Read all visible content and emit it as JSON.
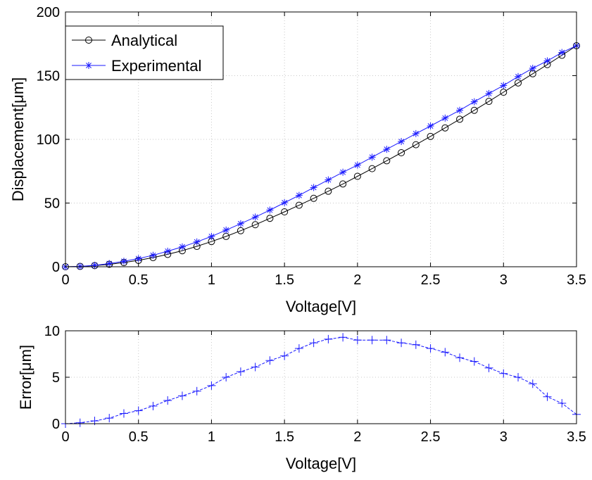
{
  "chart_data": [
    {
      "type": "line",
      "xlabel": "Voltage[V]",
      "ylabel": "Displacement[μm]",
      "xlim": [
        0,
        3.5
      ],
      "ylim": [
        0,
        200
      ],
      "xticks": [
        "0",
        "0.5",
        "1",
        "1.5",
        "2",
        "2.5",
        "3",
        "3.5"
      ],
      "yticks": [
        "0",
        "50",
        "100",
        "150",
        "200"
      ],
      "grid": true,
      "legend_position": "top-left",
      "x": [
        0,
        0.1,
        0.2,
        0.3,
        0.4,
        0.5,
        0.6,
        0.7,
        0.8,
        0.9,
        1.0,
        1.1,
        1.2,
        1.3,
        1.4,
        1.5,
        1.6,
        1.7,
        1.8,
        1.9,
        2.0,
        2.1,
        2.2,
        2.3,
        2.4,
        2.5,
        2.6,
        2.7,
        2.8,
        2.9,
        3.0,
        3.1,
        3.2,
        3.3,
        3.4,
        3.5
      ],
      "series": [
        {
          "name": "Analytical",
          "color": "#000000",
          "marker": "circle",
          "values": [
            0,
            0.3,
            0.9,
            1.9,
            3.3,
            5.0,
            7.2,
            9.7,
            12.6,
            16.0,
            19.8,
            23.8,
            28.3,
            33.0,
            38.0,
            43.1,
            48.3,
            53.7,
            59.3,
            65.0,
            71.0,
            77.0,
            83.2,
            89.5,
            95.8,
            102.3,
            109.0,
            115.8,
            122.8,
            129.8,
            137.0,
            144.3,
            151.5,
            158.7,
            166.0,
            173.5
          ]
        },
        {
          "name": "Experimental",
          "color": "#1a1aff",
          "marker": "asterisk",
          "values": [
            0,
            0.3,
            1.1,
            2.5,
            4.3,
            6.4,
            9.0,
            12.2,
            15.6,
            19.5,
            23.8,
            28.8,
            33.8,
            39.0,
            44.5,
            50.3,
            56.0,
            62.2,
            68.2,
            74.2,
            79.8,
            86.0,
            92.2,
            98.3,
            104.5,
            110.5,
            116.7,
            122.8,
            129.5,
            136.0,
            142.3,
            149.3,
            155.8,
            161.6,
            168.2,
            173.5
          ]
        }
      ]
    },
    {
      "type": "line",
      "xlabel": "Voltage[V]",
      "ylabel": "Error[μm]",
      "xlim": [
        0,
        3.5
      ],
      "ylim": [
        0,
        10
      ],
      "xticks": [
        "0",
        "0.5",
        "1",
        "1.5",
        "2",
        "2.5",
        "3",
        "3.5"
      ],
      "yticks": [
        "0",
        "5",
        "10"
      ],
      "grid": true,
      "x": [
        0,
        0.1,
        0.2,
        0.3,
        0.4,
        0.5,
        0.6,
        0.7,
        0.8,
        0.9,
        1.0,
        1.1,
        1.2,
        1.3,
        1.4,
        1.5,
        1.6,
        1.7,
        1.8,
        1.9,
        2.0,
        2.1,
        2.2,
        2.3,
        2.4,
        2.5,
        2.6,
        2.7,
        2.8,
        2.9,
        3.0,
        3.1,
        3.2,
        3.3,
        3.4,
        3.5
      ],
      "series": [
        {
          "color": "#1a1aff",
          "marker": "plus",
          "line_style": "dashed",
          "values": [
            0,
            0.1,
            0.3,
            0.6,
            1.1,
            1.4,
            1.9,
            2.5,
            3.0,
            3.5,
            4.1,
            5.0,
            5.6,
            6.1,
            6.8,
            7.3,
            8.1,
            8.7,
            9.1,
            9.3,
            9.0,
            9.0,
            9.0,
            8.7,
            8.5,
            8.1,
            7.7,
            7.1,
            6.7,
            6.0,
            5.4,
            5.0,
            4.3,
            2.9,
            2.2,
            1.0
          ]
        }
      ]
    }
  ]
}
